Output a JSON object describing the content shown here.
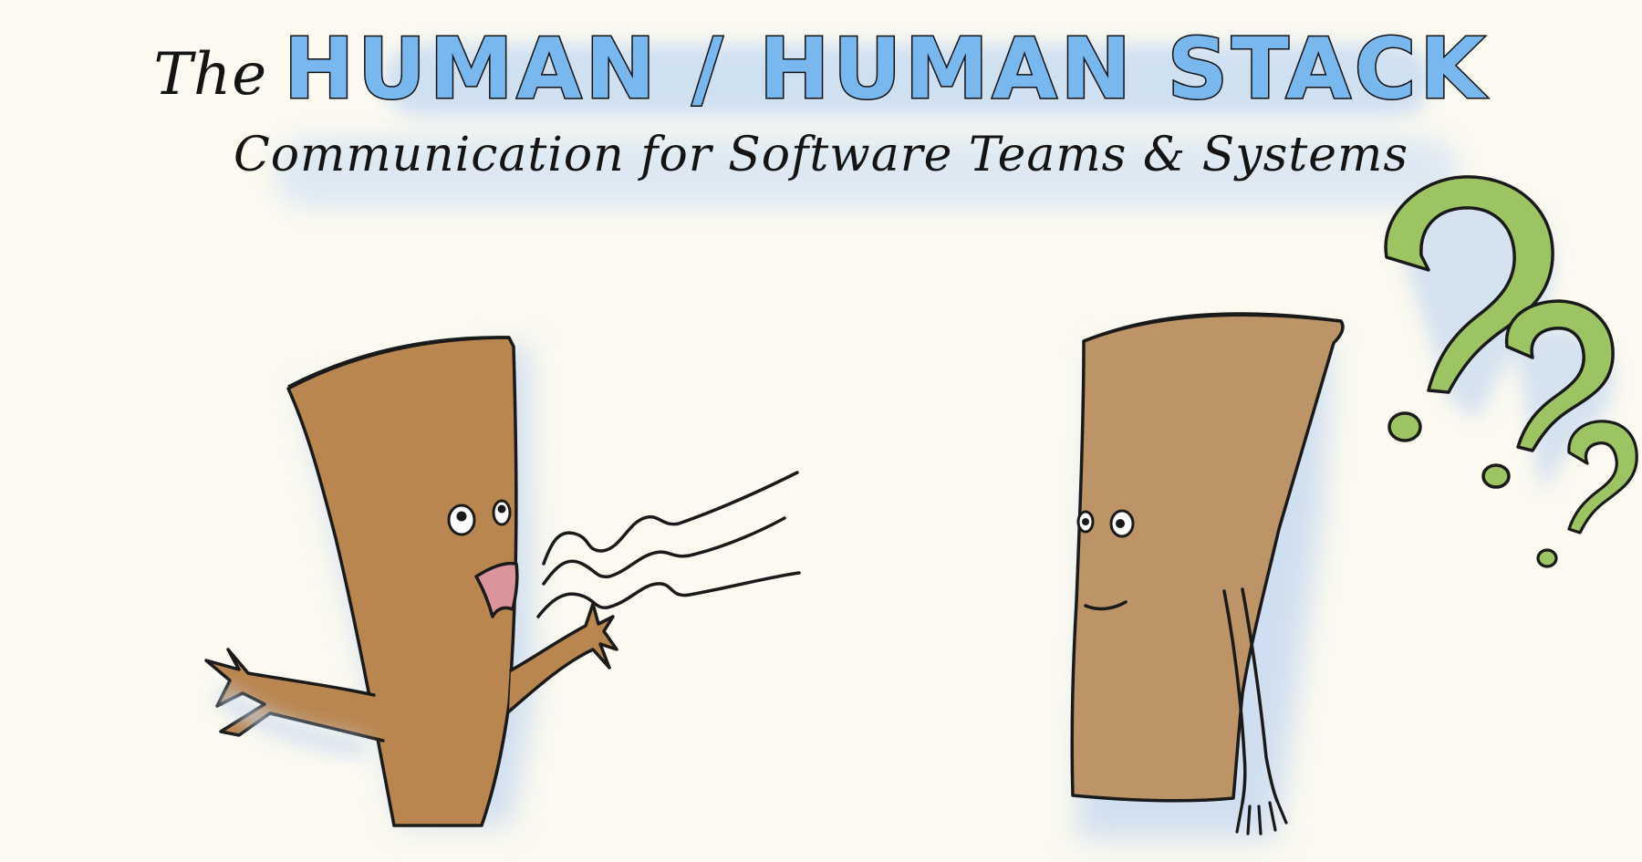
{
  "title": {
    "prefix": "The",
    "main": "HUMAN / HUMAN STACK"
  },
  "subtitle": "Communication for Software Teams & Systems",
  "colors": {
    "background": "#fcfaf0",
    "title_fill": "#79b7ef",
    "highlight": "#c8dcf2",
    "speaker_body": "#b98650",
    "listener_body": "#bc9468",
    "question_marks": "#9cc463",
    "mouth": "#d9959b",
    "outline": "#1a1a1a"
  },
  "characters": [
    {
      "role": "speaker",
      "expression": "talking"
    },
    {
      "role": "listener",
      "expression": "confused"
    }
  ],
  "icons": [
    "sound-waves-icon",
    "question-mark-icon"
  ]
}
